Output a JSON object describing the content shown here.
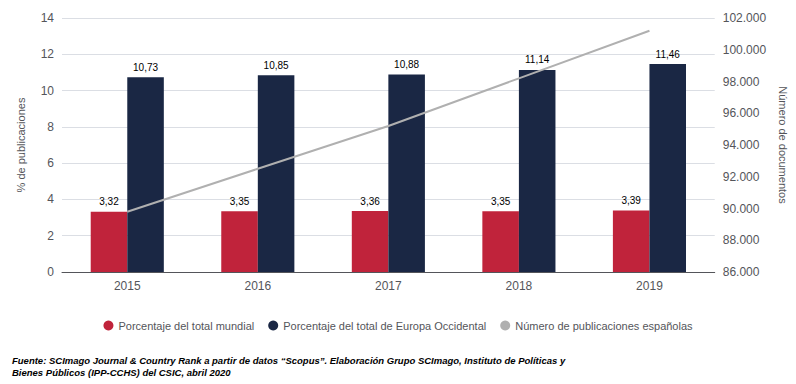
{
  "chart_data": {
    "type": "bar",
    "categories": [
      "2015",
      "2016",
      "2017",
      "2018",
      "2019"
    ],
    "ylabel": "% de publicaciones",
    "y2label": "Número de documentos",
    "ylim": [
      0,
      14
    ],
    "yticks": [
      0,
      2,
      4,
      6,
      8,
      10,
      12,
      14
    ],
    "y2lim": [
      86000,
      102000
    ],
    "y2ticks": [
      {
        "value": 86000,
        "label": "86.000"
      },
      {
        "value": 88000,
        "label": "88.000"
      },
      {
        "value": 90000,
        "label": "90.000"
      },
      {
        "value": 92000,
        "label": "92.000"
      },
      {
        "value": 94000,
        "label": "94.000"
      },
      {
        "value": 96000,
        "label": "96.000"
      },
      {
        "value": 98000,
        "label": "98.000"
      },
      {
        "value": 100000,
        "label": "100.000"
      },
      {
        "value": 102000,
        "label": "102.000"
      }
    ],
    "grid": true,
    "legend": "bottom",
    "series": [
      {
        "name": "Porcentaje del total mundial",
        "type": "bar",
        "color": "#c0233b",
        "values": [
          3.32,
          3.35,
          3.36,
          3.35,
          3.39
        ],
        "value_labels": [
          "3,32",
          "3,35",
          "3,36",
          "3,35",
          "3,39"
        ],
        "data_labels": true
      },
      {
        "name": "Porcentaje del total de Europa Occidental",
        "type": "bar",
        "color": "#1a2744",
        "values": [
          10.73,
          10.85,
          10.88,
          11.14,
          11.46
        ],
        "value_labels": [
          "10,73",
          "10,85",
          "10,88",
          "11,14",
          "11,46"
        ],
        "data_labels": true
      },
      {
        "name": "Número de publicaciones españolas",
        "type": "line",
        "color": "#b0b0b0",
        "axis": "y2",
        "values": [
          89800,
          92500,
          95200,
          98200,
          101200
        ]
      }
    ],
    "annotations": [
      "Fuente: SCImago Journal & Country Rank a partir de datos “Scopus”. Elaboración Grupo SCImago, Instituto de Políticas y\nBienes Públicos (IPP-CCHS) del CSIC, abril 2020"
    ]
  }
}
